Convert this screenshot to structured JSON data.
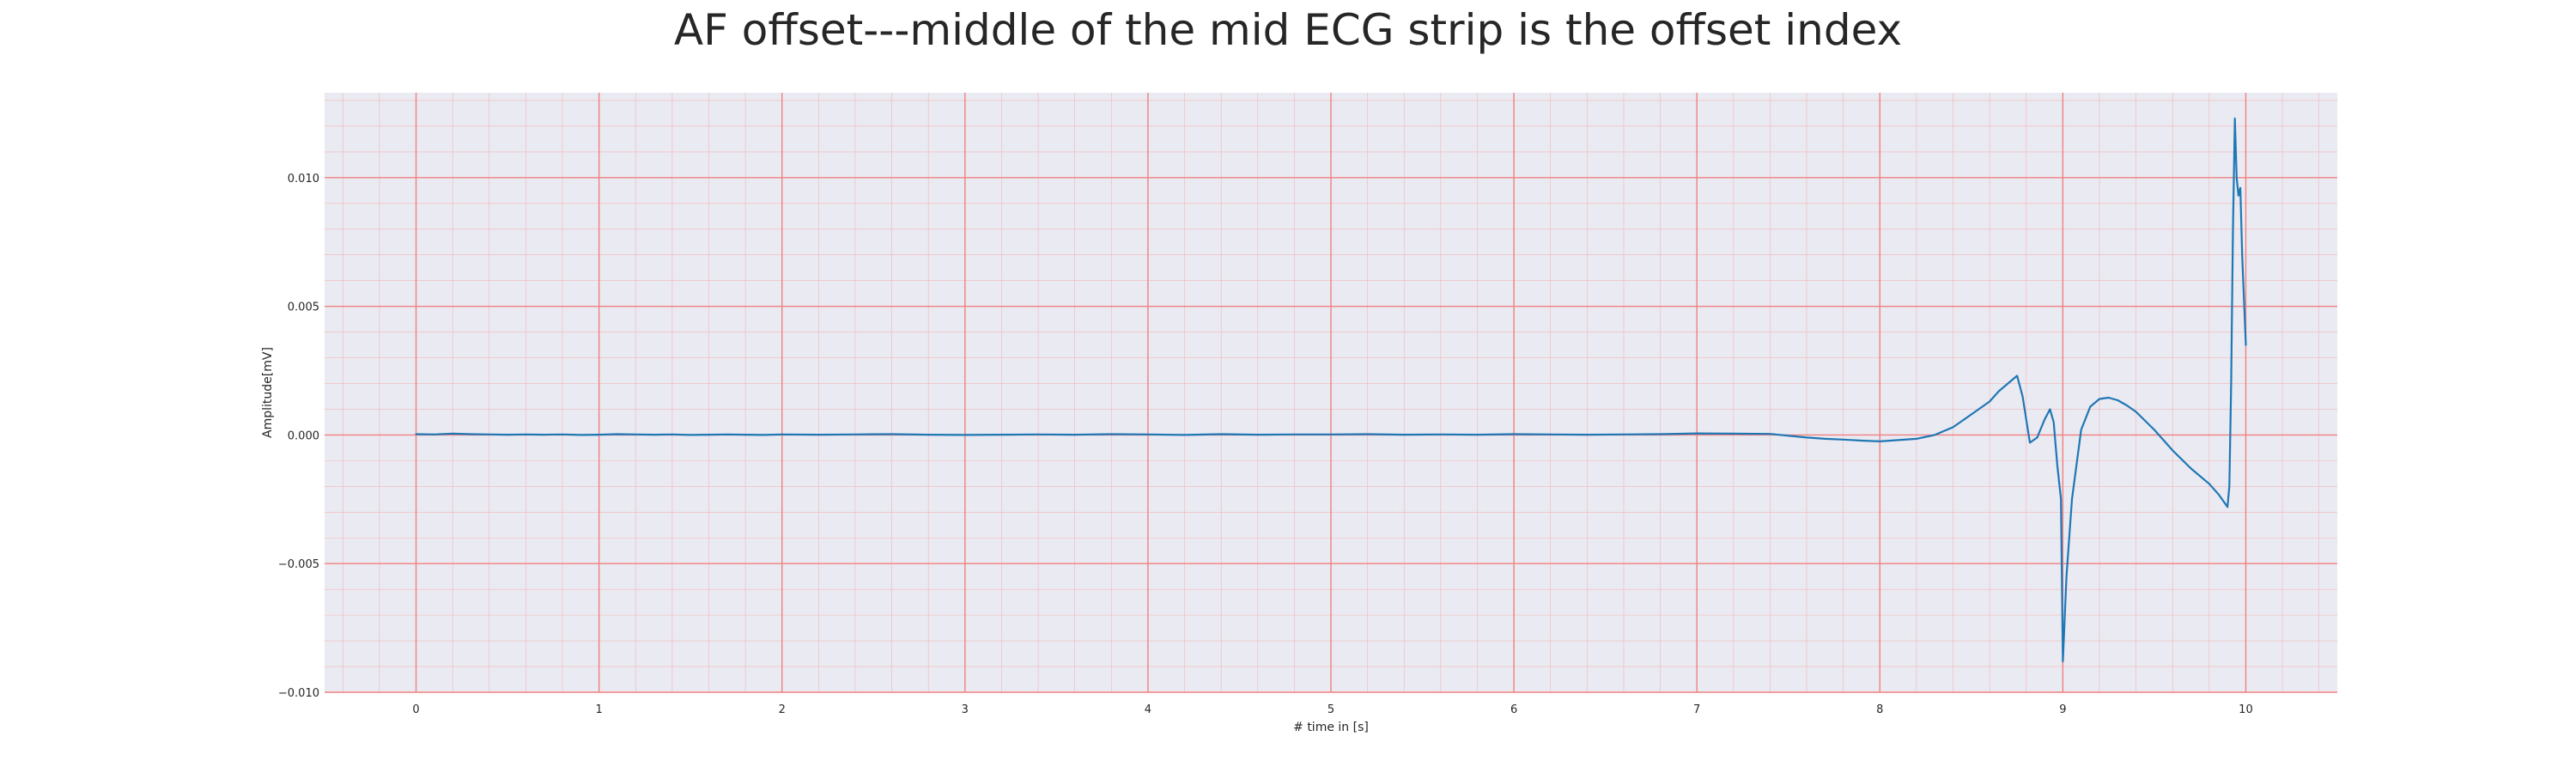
{
  "chart_data": {
    "type": "line",
    "title": "AF offset---middle of the mid ECG strip is the offset index",
    "xlabel": "# time in [s]",
    "ylabel": "Amplitude[mV]",
    "xlim": [
      -0.5,
      10.5
    ],
    "ylim": [
      -0.01,
      0.0133
    ],
    "x_ticks": [
      0,
      1,
      2,
      3,
      4,
      5,
      6,
      7,
      8,
      9,
      10
    ],
    "x_tick_labels": [
      "0",
      "1",
      "2",
      "3",
      "4",
      "5",
      "6",
      "7",
      "8",
      "9",
      "10"
    ],
    "y_ticks": [
      -0.01,
      -0.005,
      0.0,
      0.005,
      0.01
    ],
    "y_tick_labels": [
      "−0.010",
      "−0.005",
      "0.000",
      "0.005",
      "0.010"
    ],
    "grid": true,
    "minor_grid": true,
    "colors": {
      "background": "#eaeaf2",
      "major_grid": "#f08080",
      "minor_grid": "#f5b5b5",
      "line": "#1f77b4"
    },
    "series": [
      {
        "x": [
          0.0,
          0.1,
          0.2,
          0.3,
          0.4,
          0.5,
          0.6,
          0.7,
          0.8,
          0.9,
          1.0,
          1.1,
          1.2,
          1.3,
          1.4,
          1.5,
          1.6,
          1.7,
          1.8,
          1.9,
          2.0,
          2.2,
          2.4,
          2.6,
          2.8,
          3.0,
          3.2,
          3.4,
          3.6,
          3.8,
          4.0,
          4.2,
          4.4,
          4.6,
          4.8,
          5.0,
          5.2,
          5.4,
          5.6,
          5.8,
          6.0,
          6.2,
          6.4,
          6.6,
          6.8,
          7.0,
          7.2,
          7.4,
          7.5,
          7.6,
          7.7,
          7.8,
          7.9,
          8.0,
          8.1,
          8.2,
          8.3,
          8.4,
          8.5,
          8.6,
          8.65,
          8.7,
          8.75,
          8.78,
          8.82,
          8.86,
          8.9,
          8.93,
          8.95,
          8.97,
          8.99,
          9.0,
          9.02,
          9.05,
          9.1,
          9.15,
          9.2,
          9.25,
          9.3,
          9.35,
          9.4,
          9.5,
          9.6,
          9.7,
          9.8,
          9.85,
          9.88,
          9.9,
          9.91,
          9.92,
          9.93,
          9.94,
          9.95,
          9.96,
          9.97,
          9.98,
          10.0
        ],
        "y": [
          3e-05,
          2e-05,
          5e-05,
          3e-05,
          2e-05,
          1e-05,
          2e-05,
          1e-05,
          2e-05,
          0.0,
          1e-05,
          3e-05,
          2e-05,
          1e-05,
          2e-05,
          0.0,
          1e-05,
          2e-05,
          1e-05,
          0.0,
          2e-05,
          1e-05,
          2e-05,
          3e-05,
          1e-05,
          0.0,
          1e-05,
          2e-05,
          1e-05,
          3e-05,
          2e-05,
          0.0,
          3e-05,
          1e-05,
          2e-05,
          2e-05,
          3e-05,
          1e-05,
          2e-05,
          1e-05,
          3e-05,
          2e-05,
          1e-05,
          2e-05,
          3e-05,
          6e-05,
          5e-05,
          4e-05,
          -3e-05,
          -0.0001,
          -0.00015,
          -0.00018,
          -0.00022,
          -0.00025,
          -0.0002,
          -0.00015,
          0.0,
          0.0003,
          0.0008,
          0.0013,
          0.0017,
          0.002,
          0.0023,
          0.0015,
          -0.0003,
          -0.0001,
          0.0006,
          0.001,
          0.0005,
          -0.0012,
          -0.0025,
          -0.0088,
          -0.0055,
          -0.0025,
          0.0002,
          0.0011,
          0.0014,
          0.00145,
          0.00135,
          0.00115,
          0.0009,
          0.0002,
          -0.0006,
          -0.0013,
          -0.0019,
          -0.0023,
          -0.0026,
          -0.0028,
          -0.002,
          0.002,
          0.008,
          0.0123,
          0.01,
          0.0093,
          0.0096,
          0.007,
          0.0035
        ]
      }
    ]
  }
}
